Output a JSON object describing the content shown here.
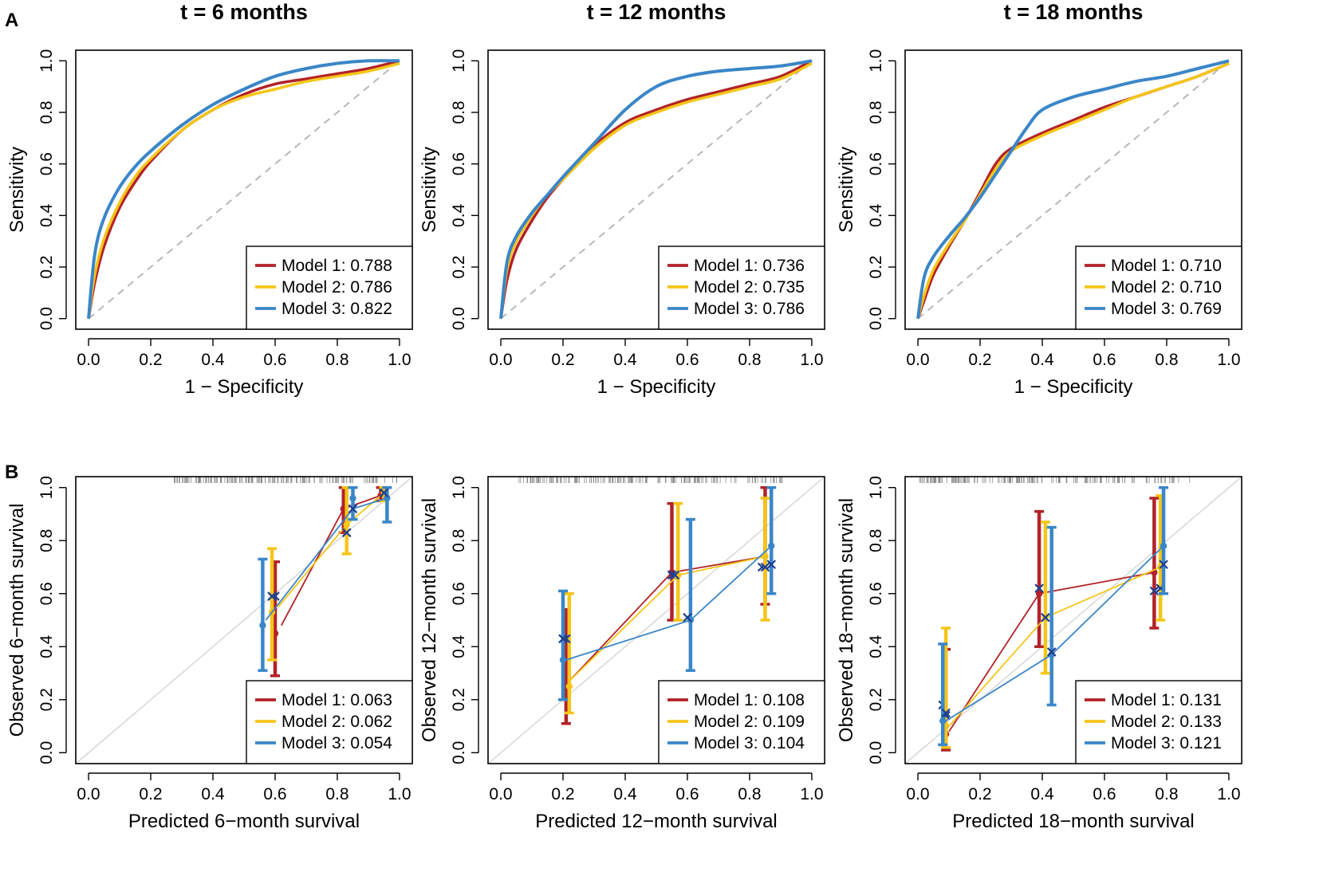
{
  "figure": {
    "panel_labels": [
      "A",
      "B"
    ]
  },
  "colors": {
    "model1": "#b22228",
    "model2": "#f5c518",
    "model3": "#3a86c8",
    "reference": "#b8b8b8",
    "calibration_reference": "#d9d9d9"
  },
  "chart_data": [
    {
      "type": "line",
      "id": "roc6",
      "title": "t = 6 months",
      "xlabel": "1 − Specificity",
      "ylabel": "Sensitivity",
      "xlim": [
        0,
        1
      ],
      "ylim": [
        0,
        1
      ],
      "xticks": [
        "0.0",
        "0.2",
        "0.4",
        "0.6",
        "0.8",
        "1.0"
      ],
      "yticks": [
        "0.0",
        "0.2",
        "0.4",
        "0.6",
        "0.8",
        "1.0"
      ],
      "legend_position": "bottom-right",
      "reference_line": "dashed diagonal",
      "series": [
        {
          "name": "Model 1",
          "label": "Model 1: 0.788",
          "color_key": "model1",
          "x": [
            0,
            0.02,
            0.05,
            0.1,
            0.15,
            0.2,
            0.3,
            0.4,
            0.5,
            0.6,
            0.7,
            0.8,
            0.9,
            1
          ],
          "y": [
            0,
            0.14,
            0.28,
            0.43,
            0.53,
            0.61,
            0.73,
            0.81,
            0.87,
            0.91,
            0.93,
            0.95,
            0.97,
            1
          ]
        },
        {
          "name": "Model 2",
          "label": "Model 2: 0.786",
          "color_key": "model2",
          "x": [
            0,
            0.02,
            0.05,
            0.1,
            0.15,
            0.2,
            0.3,
            0.4,
            0.5,
            0.6,
            0.7,
            0.8,
            0.9,
            1
          ],
          "y": [
            0,
            0.17,
            0.31,
            0.45,
            0.55,
            0.62,
            0.73,
            0.81,
            0.86,
            0.89,
            0.92,
            0.94,
            0.96,
            0.99
          ]
        },
        {
          "name": "Model 3",
          "label": "Model 3: 0.822",
          "color_key": "model3",
          "x": [
            0,
            0.02,
            0.05,
            0.1,
            0.15,
            0.2,
            0.3,
            0.4,
            0.5,
            0.6,
            0.7,
            0.8,
            0.9,
            1
          ],
          "y": [
            0,
            0.25,
            0.39,
            0.51,
            0.59,
            0.65,
            0.75,
            0.83,
            0.89,
            0.94,
            0.97,
            0.99,
            1,
            1
          ]
        }
      ]
    },
    {
      "type": "line",
      "id": "roc12",
      "title": "t = 12 months",
      "xlabel": "1 − Specificity",
      "ylabel": "Sensitivity",
      "xlim": [
        0,
        1
      ],
      "ylim": [
        0,
        1
      ],
      "xticks": [
        "0.0",
        "0.2",
        "0.4",
        "0.6",
        "0.8",
        "1.0"
      ],
      "yticks": [
        "0.0",
        "0.2",
        "0.4",
        "0.6",
        "0.8",
        "1.0"
      ],
      "legend_position": "bottom-right",
      "reference_line": "dashed diagonal",
      "series": [
        {
          "name": "Model 1",
          "label": "Model 1: 0.736",
          "color_key": "model1",
          "x": [
            0,
            0.02,
            0.05,
            0.1,
            0.15,
            0.2,
            0.3,
            0.4,
            0.5,
            0.6,
            0.7,
            0.8,
            0.9,
            1
          ],
          "y": [
            0,
            0.15,
            0.27,
            0.38,
            0.47,
            0.54,
            0.67,
            0.76,
            0.81,
            0.85,
            0.88,
            0.91,
            0.94,
            1
          ]
        },
        {
          "name": "Model 2",
          "label": "Model 2: 0.735",
          "color_key": "model2",
          "x": [
            0,
            0.02,
            0.05,
            0.1,
            0.15,
            0.2,
            0.3,
            0.4,
            0.5,
            0.6,
            0.7,
            0.8,
            0.9,
            1
          ],
          "y": [
            0,
            0.19,
            0.3,
            0.4,
            0.48,
            0.54,
            0.66,
            0.75,
            0.8,
            0.84,
            0.87,
            0.9,
            0.93,
            0.99
          ]
        },
        {
          "name": "Model 3",
          "label": "Model 3: 0.786",
          "color_key": "model3",
          "x": [
            0,
            0.02,
            0.05,
            0.1,
            0.15,
            0.2,
            0.3,
            0.4,
            0.5,
            0.6,
            0.7,
            0.8,
            0.9,
            1
          ],
          "y": [
            0,
            0.22,
            0.32,
            0.41,
            0.48,
            0.55,
            0.68,
            0.81,
            0.9,
            0.94,
            0.96,
            0.97,
            0.98,
            1
          ]
        }
      ]
    },
    {
      "type": "line",
      "id": "roc18",
      "title": "t = 18 months",
      "xlabel": "1 − Specificity",
      "ylabel": "Sensitivity",
      "xlim": [
        0,
        1
      ],
      "ylim": [
        0,
        1
      ],
      "xticks": [
        "0.0",
        "0.2",
        "0.4",
        "0.6",
        "0.8",
        "1.0"
      ],
      "yticks": [
        "0.0",
        "0.2",
        "0.4",
        "0.6",
        "0.8",
        "1.0"
      ],
      "legend_position": "bottom-right",
      "reference_line": "dashed diagonal",
      "series": [
        {
          "name": "Model 1",
          "label": "Model 1: 0.710",
          "color_key": "model1",
          "x": [
            0,
            0.02,
            0.05,
            0.1,
            0.15,
            0.2,
            0.25,
            0.3,
            0.4,
            0.5,
            0.6,
            0.7,
            0.8,
            0.9,
            1
          ],
          "y": [
            0,
            0.07,
            0.17,
            0.28,
            0.38,
            0.49,
            0.6,
            0.66,
            0.72,
            0.77,
            0.82,
            0.86,
            0.9,
            0.94,
            0.99
          ]
        },
        {
          "name": "Model 2",
          "label": "Model 2: 0.710",
          "color_key": "model2",
          "x": [
            0,
            0.02,
            0.05,
            0.1,
            0.15,
            0.2,
            0.25,
            0.3,
            0.4,
            0.5,
            0.6,
            0.7,
            0.8,
            0.9,
            1
          ],
          "y": [
            0,
            0.09,
            0.19,
            0.29,
            0.38,
            0.48,
            0.58,
            0.65,
            0.71,
            0.76,
            0.81,
            0.86,
            0.9,
            0.94,
            0.99
          ]
        },
        {
          "name": "Model 3",
          "label": "Model 3: 0.769",
          "color_key": "model3",
          "x": [
            0,
            0.02,
            0.05,
            0.1,
            0.15,
            0.2,
            0.25,
            0.3,
            0.35,
            0.4,
            0.5,
            0.6,
            0.7,
            0.8,
            0.9,
            1
          ],
          "y": [
            0,
            0.16,
            0.24,
            0.32,
            0.39,
            0.47,
            0.56,
            0.65,
            0.74,
            0.81,
            0.86,
            0.89,
            0.92,
            0.94,
            0.97,
            1
          ]
        }
      ]
    },
    {
      "type": "line",
      "id": "cal6",
      "xlabel": "Predicted 6−month survival",
      "ylabel": "Observed 6−month survival",
      "xlim": [
        0,
        1
      ],
      "ylim": [
        0,
        1
      ],
      "xticks": [
        "0.0",
        "0.2",
        "0.4",
        "0.6",
        "0.8",
        "1.0"
      ],
      "yticks": [
        "0.0",
        "0.2",
        "0.4",
        "0.6",
        "0.8",
        "1.0"
      ],
      "legend_position": "bottom-right",
      "reference_line": "solid diagonal",
      "rug_range": [
        0.27,
        1.0
      ],
      "series": [
        {
          "name": "Model 1",
          "label": "Model 1: 0.063",
          "color_key": "model1",
          "points": [
            {
              "x": 0.6,
              "obs": 0.45,
              "lo": 0.29,
              "hi": 0.72,
              "kmx": 0.6,
              "km": 0.59
            },
            {
              "x": 0.82,
              "obs": 0.92,
              "lo": 0.83,
              "hi": 1.0,
              "kmx": 0.83,
              "km": 0.83
            },
            {
              "x": 0.94,
              "obs": 0.97,
              "lo": 0.95,
              "hi": 1.0,
              "kmx": 0.95,
              "km": 0.98
            }
          ],
          "line_x": [
            0.62,
            0.82,
            0.94
          ],
          "line_y": [
            0.48,
            0.92,
            0.97
          ]
        },
        {
          "name": "Model 2",
          "label": "Model 2: 0.062",
          "color_key": "model2",
          "points": [
            {
              "x": 0.59,
              "obs": 0.53,
              "lo": 0.35,
              "hi": 0.77,
              "kmx": 0.59,
              "km": 0.59
            },
            {
              "x": 0.83,
              "obs": 0.86,
              "lo": 0.75,
              "hi": 1.0,
              "kmx": 0.83,
              "km": 0.83
            },
            {
              "x": 0.95,
              "obs": 0.98,
              "lo": 0.95,
              "hi": 1.0,
              "kmx": 0.95,
              "km": 0.98
            }
          ],
          "line_x": [
            0.61,
            0.83,
            0.95
          ],
          "line_y": [
            0.55,
            0.86,
            0.98
          ]
        },
        {
          "name": "Model 3",
          "label": "Model 3: 0.054",
          "color_key": "model3",
          "points": [
            {
              "x": 0.56,
              "obs": 0.48,
              "lo": 0.31,
              "hi": 0.73,
              "kmx": 0.59,
              "km": 0.59
            },
            {
              "x": 0.85,
              "obs": 0.96,
              "lo": 0.88,
              "hi": 1.0,
              "kmx": 0.85,
              "km": 0.92
            },
            {
              "x": 0.96,
              "obs": 0.96,
              "lo": 0.87,
              "hi": 1.0,
              "kmx": 0.95,
              "km": 0.98
            }
          ],
          "line_x": [
            0.57,
            0.85,
            0.96
          ],
          "line_y": [
            0.5,
            0.92,
            0.96
          ]
        }
      ]
    },
    {
      "type": "line",
      "id": "cal12",
      "xlabel": "Predicted 12−month survival",
      "ylabel": "Observed 12−month survival",
      "xlim": [
        0,
        1
      ],
      "ylim": [
        0,
        1
      ],
      "xticks": [
        "0.0",
        "0.2",
        "0.4",
        "0.6",
        "0.8",
        "1.0"
      ],
      "yticks": [
        "0.0",
        "0.2",
        "0.4",
        "0.6",
        "0.8",
        "1.0"
      ],
      "legend_position": "bottom-right",
      "reference_line": "solid diagonal",
      "rug_range": [
        0.05,
        0.95
      ],
      "series": [
        {
          "name": "Model 1",
          "label": "Model 1: 0.108",
          "color_key": "model1",
          "points": [
            {
              "x": 0.21,
              "obs": 0.25,
              "lo": 0.11,
              "hi": 0.54,
              "kmx": 0.2,
              "km": 0.43
            },
            {
              "x": 0.55,
              "obs": 0.68,
              "lo": 0.5,
              "hi": 0.94,
              "kmx": 0.55,
              "km": 0.67
            },
            {
              "x": 0.85,
              "obs": 0.74,
              "lo": 0.56,
              "hi": 1.0,
              "kmx": 0.84,
              "km": 0.7
            }
          ],
          "line_x": [
            0.22,
            0.55,
            0.85
          ],
          "line_y": [
            0.27,
            0.68,
            0.74
          ]
        },
        {
          "name": "Model 2",
          "label": "Model 2: 0.109",
          "color_key": "model2",
          "points": [
            {
              "x": 0.22,
              "obs": 0.25,
              "lo": 0.15,
              "hi": 0.6,
              "kmx": 0.21,
              "km": 0.43
            },
            {
              "x": 0.57,
              "obs": 0.67,
              "lo": 0.5,
              "hi": 0.94,
              "kmx": 0.56,
              "km": 0.67
            },
            {
              "x": 0.85,
              "obs": 0.74,
              "lo": 0.5,
              "hi": 0.96,
              "kmx": 0.85,
              "km": 0.7
            }
          ],
          "line_x": [
            0.22,
            0.57,
            0.85
          ],
          "line_y": [
            0.27,
            0.67,
            0.74
          ]
        },
        {
          "name": "Model 3",
          "label": "Model 3: 0.104",
          "color_key": "model3",
          "points": [
            {
              "x": 0.2,
              "obs": 0.35,
              "lo": 0.2,
              "hi": 0.61,
              "kmx": 0.2,
              "km": 0.43
            },
            {
              "x": 0.61,
              "obs": 0.5,
              "lo": 0.31,
              "hi": 0.88,
              "kmx": 0.6,
              "km": 0.51
            },
            {
              "x": 0.87,
              "obs": 0.78,
              "lo": 0.6,
              "hi": 1.0,
              "kmx": 0.87,
              "km": 0.71
            }
          ],
          "line_x": [
            0.21,
            0.61,
            0.87
          ],
          "line_y": [
            0.35,
            0.5,
            0.78
          ]
        }
      ]
    },
    {
      "type": "line",
      "id": "cal18",
      "xlabel": "Predicted 18−month survival",
      "ylabel": "Observed 18−month survival",
      "xlim": [
        0,
        1
      ],
      "ylim": [
        0,
        1
      ],
      "xticks": [
        "0.0",
        "0.2",
        "0.4",
        "0.6",
        "0.8",
        "1.0"
      ],
      "yticks": [
        "0.0",
        "0.2",
        "0.4",
        "0.6",
        "0.8",
        "1.0"
      ],
      "legend_position": "bottom-right",
      "reference_line": "solid diagonal",
      "rug_range": [
        0.0,
        0.9
      ],
      "series": [
        {
          "name": "Model 1",
          "label": "Model 1: 0.131",
          "color_key": "model1",
          "points": [
            {
              "x": 0.09,
              "obs": 0.07,
              "lo": 0.01,
              "hi": 0.39,
              "kmx": 0.08,
              "km": 0.18
            },
            {
              "x": 0.39,
              "obs": 0.6,
              "lo": 0.4,
              "hi": 0.91,
              "kmx": 0.39,
              "km": 0.62
            },
            {
              "x": 0.76,
              "obs": 0.68,
              "lo": 0.47,
              "hi": 0.96,
              "kmx": 0.76,
              "km": 0.61
            }
          ],
          "line_x": [
            0.1,
            0.39,
            0.76
          ],
          "line_y": [
            0.08,
            0.6,
            0.68
          ]
        },
        {
          "name": "Model 2",
          "label": "Model 2: 0.133",
          "color_key": "model2",
          "points": [
            {
              "x": 0.09,
              "obs": 0.1,
              "lo": 0.02,
              "hi": 0.47,
              "kmx": 0.09,
              "km": 0.14
            },
            {
              "x": 0.41,
              "obs": 0.51,
              "lo": 0.3,
              "hi": 0.87,
              "kmx": 0.41,
              "km": 0.51
            },
            {
              "x": 0.78,
              "obs": 0.7,
              "lo": 0.5,
              "hi": 0.97,
              "kmx": 0.78,
              "km": 0.62
            }
          ],
          "line_x": [
            0.1,
            0.41,
            0.78
          ],
          "line_y": [
            0.1,
            0.51,
            0.7
          ]
        },
        {
          "name": "Model 3",
          "label": "Model 3: 0.121",
          "color_key": "model3",
          "points": [
            {
              "x": 0.08,
              "obs": 0.12,
              "lo": 0.03,
              "hi": 0.41,
              "kmx": 0.09,
              "km": 0.15
            },
            {
              "x": 0.43,
              "obs": 0.37,
              "lo": 0.18,
              "hi": 0.85,
              "kmx": 0.43,
              "km": 0.38
            },
            {
              "x": 0.79,
              "obs": 0.78,
              "lo": 0.6,
              "hi": 1.0,
              "kmx": 0.79,
              "km": 0.71
            }
          ],
          "line_x": [
            0.09,
            0.43,
            0.79
          ],
          "line_y": [
            0.12,
            0.37,
            0.78
          ]
        }
      ]
    }
  ]
}
